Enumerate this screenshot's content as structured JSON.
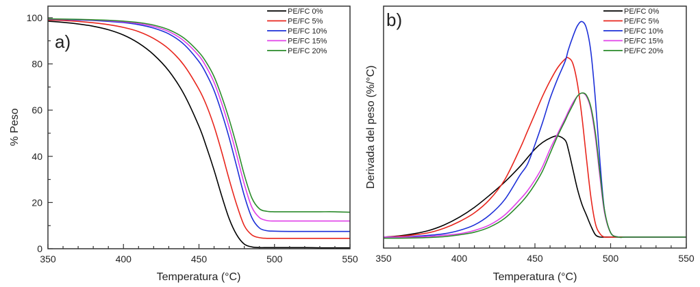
{
  "chart_data": [
    {
      "type": "line",
      "panel_label": "a)",
      "title": "",
      "xlabel": "Temperatura (°C)",
      "ylabel": "% Peso",
      "xlim": [
        350,
        550
      ],
      "ylim": [
        0,
        105
      ],
      "xticks": [
        350,
        400,
        450,
        500,
        550
      ],
      "xtick_labels": [
        "350",
        "400",
        "450",
        "500",
        "550"
      ],
      "yticks": [
        0,
        20,
        40,
        60,
        80,
        100
      ],
      "ytick_labels": [
        "0",
        "20",
        "40",
        "60",
        "80",
        "100"
      ],
      "grid": false,
      "legend_position": "top-right",
      "x": [
        350,
        360,
        370,
        380,
        390,
        400,
        410,
        420,
        430,
        440,
        450,
        455,
        460,
        465,
        470,
        475,
        480,
        485,
        490,
        495,
        500,
        510,
        520,
        530,
        540,
        550
      ],
      "series": [
        {
          "name": "PE/FC 0%",
          "color": "#000000",
          "values": [
            98.5,
            98.0,
            97.3,
            96.3,
            94.8,
            92.5,
            89.0,
            84.0,
            77.0,
            67.0,
            53.0,
            44.0,
            34.0,
            23.0,
            13.0,
            6.0,
            2.0,
            0.8,
            0.5,
            0.5,
            0.5,
            0.5,
            0.5,
            0.4,
            0.4,
            0.4
          ]
        },
        {
          "name": "PE/FC 5%",
          "color": "#e8251c",
          "values": [
            99.0,
            98.8,
            98.4,
            97.8,
            97.0,
            95.8,
            94.0,
            91.0,
            86.5,
            79.5,
            69.0,
            62.0,
            53.0,
            42.0,
            30.0,
            19.0,
            10.0,
            6.0,
            4.8,
            4.5,
            4.5,
            4.5,
            4.5,
            4.5,
            4.5,
            4.5
          ]
        },
        {
          "name": "PE/FC 10%",
          "color": "#1c2fd8",
          "values": [
            99.3,
            99.2,
            99.0,
            98.8,
            98.4,
            97.9,
            97.0,
            95.5,
            93.0,
            88.5,
            81.0,
            75.5,
            68.5,
            59.0,
            48.0,
            35.5,
            23.0,
            13.5,
            9.0,
            7.8,
            7.6,
            7.5,
            7.5,
            7.5,
            7.5,
            7.5
          ]
        },
        {
          "name": "PE/FC 15%",
          "color": "#e040e8",
          "values": [
            99.4,
            99.3,
            99.2,
            99.0,
            98.7,
            98.2,
            97.5,
            96.2,
            94.0,
            90.0,
            83.5,
            78.5,
            72.0,
            63.0,
            52.5,
            40.5,
            28.0,
            18.0,
            13.5,
            12.2,
            12.0,
            12.0,
            12.0,
            12.0,
            12.0,
            12.0
          ]
        },
        {
          "name": "PE/FC 20%",
          "color": "#2a8a2a",
          "values": [
            99.5,
            99.4,
            99.3,
            99.1,
            98.9,
            98.5,
            97.9,
            96.8,
            94.8,
            91.2,
            85.0,
            80.5,
            74.5,
            66.0,
            56.0,
            44.5,
            32.0,
            22.0,
            17.3,
            16.2,
            16.0,
            16.0,
            16.0,
            16.0,
            16.0,
            15.8
          ]
        }
      ]
    },
    {
      "type": "line",
      "panel_label": "b)",
      "title": "",
      "xlabel": "Temperatura (°C)",
      "ylabel": "Derivada del peso (%/°C)",
      "xlim": [
        350,
        550
      ],
      "ylim": [
        -0.05,
        1.05
      ],
      "xticks": [
        350,
        400,
        450,
        500,
        550
      ],
      "xtick_labels": [
        "350",
        "400",
        "450",
        "500",
        "550"
      ],
      "yticks": [],
      "ytick_labels": [],
      "grid": false,
      "legend_position": "top-right",
      "y_units_note": "arbitrary (no y tick labels shown)",
      "x": [
        350,
        360,
        370,
        380,
        390,
        400,
        410,
        420,
        430,
        440,
        445,
        450,
        455,
        460,
        465,
        470,
        472,
        475,
        478,
        481,
        484,
        487,
        490,
        493,
        496,
        500,
        505,
        510,
        520,
        530,
        540,
        550
      ],
      "series": [
        {
          "name": "PE/FC 0%",
          "color": "#000000",
          "values": [
            0.0,
            0.005,
            0.015,
            0.03,
            0.055,
            0.09,
            0.135,
            0.19,
            0.25,
            0.32,
            0.36,
            0.4,
            0.43,
            0.45,
            0.46,
            0.44,
            0.4,
            0.31,
            0.22,
            0.15,
            0.1,
            0.05,
            0.01,
            0.0,
            0.0,
            0.0,
            0.0,
            0.0,
            0.0,
            0.0,
            0.0,
            0.0
          ]
        },
        {
          "name": "PE/FC 5%",
          "color": "#e8251c",
          "values": [
            0.0,
            0.003,
            0.01,
            0.02,
            0.04,
            0.07,
            0.11,
            0.17,
            0.26,
            0.4,
            0.48,
            0.56,
            0.64,
            0.71,
            0.77,
            0.81,
            0.815,
            0.79,
            0.7,
            0.55,
            0.36,
            0.18,
            0.06,
            0.015,
            0.0,
            0.0,
            0.0,
            0.0,
            0.0,
            0.0,
            0.0,
            0.0
          ]
        },
        {
          "name": "PE/FC 10%",
          "color": "#1c2fd8",
          "values": [
            0.0,
            0.0,
            0.003,
            0.008,
            0.015,
            0.03,
            0.055,
            0.1,
            0.17,
            0.28,
            0.33,
            0.42,
            0.52,
            0.63,
            0.72,
            0.8,
            0.85,
            0.91,
            0.96,
            0.98,
            0.95,
            0.84,
            0.62,
            0.34,
            0.12,
            0.02,
            0.0,
            0.0,
            0.0,
            0.0,
            0.0,
            0.0
          ]
        },
        {
          "name": "PE/FC 15%",
          "color": "#e040e8",
          "values": [
            0.0,
            0.0,
            0.0,
            0.003,
            0.008,
            0.015,
            0.03,
            0.055,
            0.1,
            0.17,
            0.21,
            0.26,
            0.32,
            0.4,
            0.47,
            0.54,
            0.57,
            0.61,
            0.64,
            0.655,
            0.64,
            0.58,
            0.45,
            0.27,
            0.11,
            0.02,
            0.0,
            0.0,
            0.0,
            0.0,
            0.0,
            0.0
          ]
        },
        {
          "name": "PE/FC 20%",
          "color": "#2a8a2a",
          "values": [
            -0.005,
            -0.005,
            -0.004,
            -0.002,
            0.002,
            0.01,
            0.022,
            0.045,
            0.085,
            0.15,
            0.19,
            0.24,
            0.3,
            0.38,
            0.46,
            0.53,
            0.56,
            0.6,
            0.64,
            0.655,
            0.645,
            0.59,
            0.47,
            0.29,
            0.12,
            0.02,
            0.0,
            0.0,
            0.0,
            0.0,
            0.0,
            0.0
          ]
        }
      ]
    }
  ]
}
